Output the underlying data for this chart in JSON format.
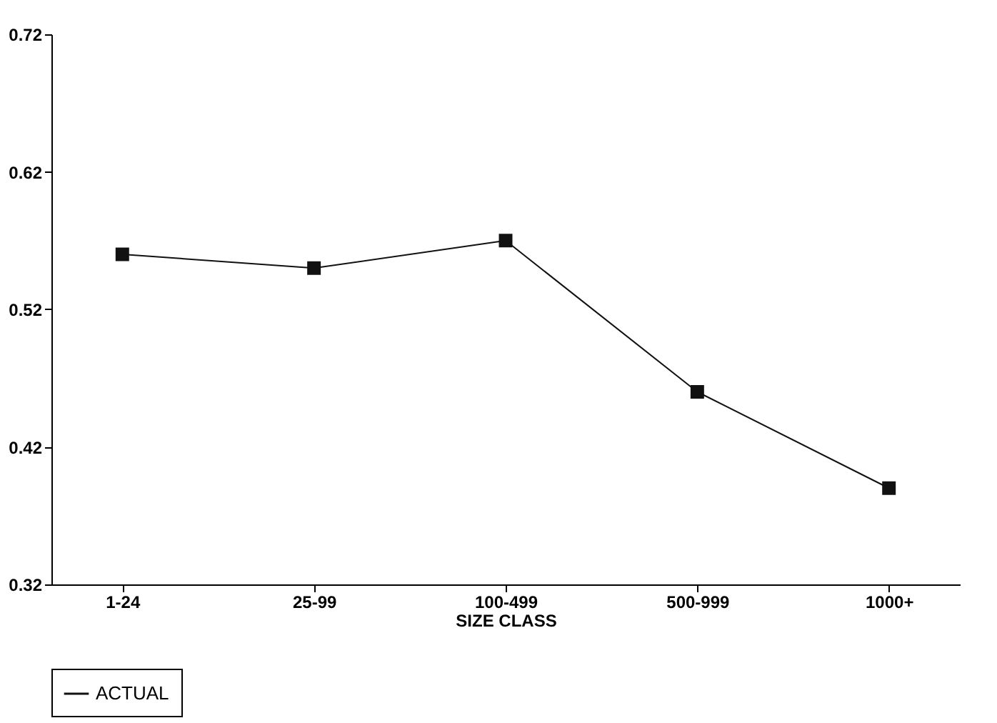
{
  "chart_data": {
    "type": "line",
    "xlabel": "SIZE CLASS",
    "categories": [
      "1-24",
      "25-99",
      "100-499",
      "500-999",
      "1000+"
    ],
    "series": [
      {
        "name": "ACTUAL",
        "color": "#111111",
        "values": [
          0.56,
          0.55,
          0.57,
          0.46,
          0.39
        ]
      }
    ],
    "ylim": [
      0.32,
      0.72
    ],
    "yticks": [
      0.32,
      0.42,
      0.52,
      0.62,
      0.72
    ],
    "grid": false,
    "legend": "bottom",
    "marker": "square",
    "line_style": "solid"
  }
}
